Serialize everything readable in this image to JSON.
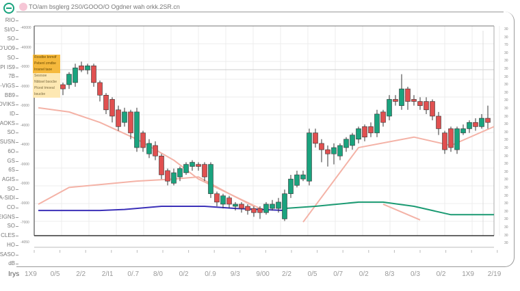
{
  "header": {
    "title": "TO/am bsglerg 2S0/GOOO/O Ogdner wah orkk.2SR.cn",
    "logo_icon": "circle-minus-icon"
  },
  "colors": {
    "up": "#1aa37e",
    "down": "#e05050",
    "ma_fast": "#f4b2a6",
    "ma_blue": "#3a2fb8",
    "ma_green": "#1a9a72",
    "grid": "#ececec"
  },
  "tooltip": {
    "lines_highlight": [
      "Rosdbe bnmdf",
      "Pebenl zmdbe",
      "Irosnel taoe"
    ],
    "lines": [
      "Sesrsoe",
      "Nbbsel bsocbe",
      "Plcesl tmoeal",
      "bsucbe"
    ]
  },
  "left_axis": [
    "RIO",
    "SI/O",
    "SO",
    "O'UO9",
    "SO",
    "PI IS9",
    "7B",
    "G-VIGS",
    "BB9",
    "OVIKS",
    "ID",
    "AOKS",
    "SO",
    "SUSN",
    "6O",
    "GS",
    "6S",
    "AGIS",
    "SO",
    "A-SIDI",
    "CO",
    "EIGNS",
    "SO",
    "CLES",
    "HO",
    "SASO",
    "dB"
  ],
  "inner_axis": [
    "-40000",
    "-40000",
    "-0000",
    "-0000",
    "-0000",
    "-4000",
    "-4000",
    "-0000",
    "-0000",
    "-0000",
    "-7000",
    "-4050"
  ],
  "right_axis": [
    "30",
    "30",
    "70",
    "30",
    "30",
    "30",
    "30",
    "30",
    "30",
    "30",
    "30",
    "30",
    "30",
    "30",
    "30",
    "30",
    "30",
    "30",
    "30",
    "30",
    "30",
    "30",
    "30",
    "30",
    "30",
    "30",
    "30",
    "30"
  ],
  "x_axis": {
    "unit": "Irys",
    "labels": [
      "1X9",
      "0/5",
      "2/2",
      "2/I1",
      "0/.7",
      "8/0",
      "0/2",
      "0/.9",
      "9/3",
      "9/00",
      "2/2",
      "0/5",
      "0/7",
      "0/2",
      "8/3",
      "0/3",
      "0/2",
      "1X9",
      "2/19"
    ]
  },
  "chart_data": {
    "type": "candlestick",
    "ylim": [
      0,
      100
    ],
    "grid": true,
    "candles": [
      [
        80,
        84,
        79,
        82
      ],
      [
        80,
        83,
        78,
        82
      ],
      [
        82,
        83,
        66,
        68
      ],
      [
        68,
        75,
        66,
        73
      ],
      [
        72,
        73,
        67,
        70
      ],
      [
        72,
        78,
        70,
        77
      ],
      [
        73,
        82,
        71,
        80
      ],
      [
        81,
        83,
        78,
        79
      ],
      [
        79,
        82,
        77,
        81
      ],
      [
        81,
        82,
        71,
        73
      ],
      [
        73,
        74,
        64,
        67
      ],
      [
        67,
        68,
        58,
        60
      ],
      [
        65,
        66,
        54,
        57
      ],
      [
        60,
        62,
        50,
        52
      ],
      [
        54,
        61,
        52,
        59
      ],
      [
        59,
        60,
        46,
        49
      ],
      [
        42,
        61,
        40,
        59
      ],
      [
        49,
        50,
        40,
        42
      ],
      [
        39,
        46,
        37,
        44
      ],
      [
        43,
        45,
        36,
        38
      ],
      [
        38,
        39,
        27,
        29
      ],
      [
        31,
        32,
        24,
        26
      ],
      [
        25,
        32,
        24,
        30
      ],
      [
        28,
        33,
        26,
        32
      ],
      [
        30,
        35,
        29,
        34
      ],
      [
        33,
        36,
        31,
        35
      ],
      [
        34,
        35,
        31,
        33
      ],
      [
        34,
        35,
        26,
        28
      ],
      [
        20,
        35,
        18,
        34
      ],
      [
        20,
        21,
        14,
        16
      ],
      [
        15,
        20,
        13,
        19
      ],
      [
        18,
        19,
        13,
        15
      ],
      [
        14,
        16,
        12,
        15
      ],
      [
        15,
        16,
        11,
        13
      ],
      [
        14,
        15,
        10,
        12
      ],
      [
        13,
        14,
        9,
        11
      ],
      [
        13,
        14,
        8,
        11
      ],
      [
        11,
        16,
        10,
        15
      ],
      [
        13,
        17,
        12,
        15
      ],
      [
        13,
        18,
        11,
        16
      ],
      [
        8,
        22,
        7,
        20
      ],
      [
        20,
        29,
        18,
        27
      ],
      [
        24,
        31,
        23,
        29
      ],
      [
        27,
        31,
        26,
        29
      ],
      [
        26,
        51,
        24,
        49
      ],
      [
        49,
        51,
        42,
        44
      ],
      [
        44,
        46,
        35,
        41
      ],
      [
        41,
        43,
        33,
        39
      ],
      [
        39,
        44,
        34,
        42
      ],
      [
        38,
        44,
        36,
        43
      ],
      [
        42,
        47,
        40,
        46
      ],
      [
        43,
        49,
        41,
        48
      ],
      [
        46,
        52,
        44,
        51
      ],
      [
        52,
        53,
        45,
        47
      ],
      [
        52,
        54,
        47,
        49
      ],
      [
        49,
        60,
        47,
        58
      ],
      [
        59,
        60,
        52,
        54
      ],
      [
        57,
        67,
        55,
        65
      ],
      [
        65,
        67,
        62,
        64
      ],
      [
        62,
        77,
        60,
        70
      ],
      [
        70,
        71,
        60,
        64
      ],
      [
        65,
        67,
        62,
        64
      ],
      [
        64,
        66,
        60,
        62
      ],
      [
        64,
        66,
        58,
        60
      ],
      [
        64,
        65,
        55,
        57
      ],
      [
        57,
        59,
        48,
        51
      ],
      [
        49,
        50,
        39,
        41
      ],
      [
        51,
        52,
        40,
        42
      ],
      [
        41,
        52,
        39,
        51
      ],
      [
        49,
        53,
        48,
        51
      ],
      [
        51,
        55,
        49,
        54
      ],
      [
        54,
        56,
        50,
        52
      ],
      [
        52,
        58,
        51,
        56
      ],
      [
        56,
        62,
        51,
        54
      ]
    ],
    "lines": [
      {
        "color": "#f4b2a6",
        "points": [
          [
            0,
            61
          ],
          [
            5,
            59
          ],
          [
            10,
            54
          ],
          [
            16,
            46
          ],
          [
            22,
            36
          ],
          [
            26,
            27
          ],
          [
            31,
            20
          ],
          [
            36,
            13
          ]
        ]
      },
      {
        "color": "#f4b2a6",
        "points": [
          [
            0,
            15
          ],
          [
            5,
            23
          ],
          [
            16,
            26
          ],
          [
            22,
            27
          ],
          [
            26,
            28
          ],
          [
            31,
            20
          ],
          [
            35,
            14
          ]
        ]
      },
      {
        "color": "#f4b2a6",
        "points": [
          [
            43,
            6.5
          ],
          [
            52,
            42
          ],
          [
            61,
            47
          ],
          [
            67,
            43
          ],
          [
            74,
            52
          ]
        ]
      },
      {
        "color": "#f4b2a6",
        "points": [
          [
            56,
            15
          ],
          [
            62,
            7.5
          ]
        ]
      },
      {
        "color": "#3a2fb8",
        "points": [
          [
            0,
            12
          ],
          [
            10,
            12
          ],
          [
            14,
            12.5
          ],
          [
            20,
            14
          ],
          [
            27,
            14
          ],
          [
            32,
            13
          ],
          [
            40,
            12
          ]
        ]
      },
      {
        "color": "#1a9a72",
        "points": [
          [
            40,
            13
          ],
          [
            45,
            14
          ],
          [
            52,
            16
          ],
          [
            56,
            16
          ],
          [
            61,
            14
          ],
          [
            67,
            10
          ],
          [
            74,
            10
          ]
        ]
      }
    ]
  }
}
